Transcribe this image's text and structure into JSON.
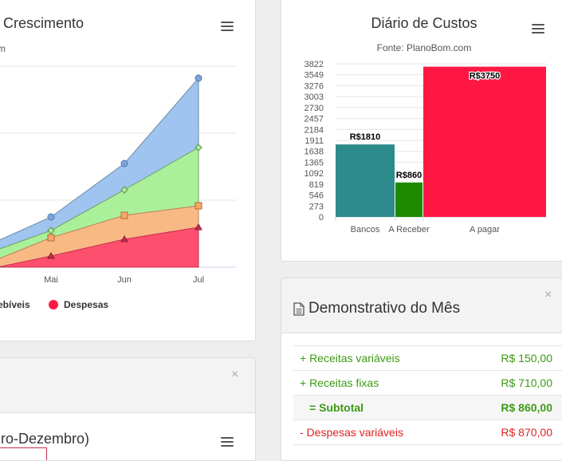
{
  "left_chart": {
    "title": "Crescimento",
    "subtitle_fragment": "m",
    "x_labels": [
      "Mai",
      "Jun",
      "Jul"
    ],
    "legend": [
      {
        "label": "ebíveis",
        "color": ""
      },
      {
        "label": "Despesas",
        "color": "#ff1744"
      }
    ],
    "series_colors": [
      "#9ec4ef",
      "#aaf09a",
      "#f9b985",
      "#ff4f6e"
    ]
  },
  "costs_chart": {
    "title": "Diário de Custos",
    "subtitle": "Fonte: PlanoBom.com",
    "y_ticks": [
      "0",
      "273",
      "546",
      "819",
      "1092",
      "1365",
      "1638",
      "1911",
      "2184",
      "2457",
      "2730",
      "3003",
      "3276",
      "3549",
      "3822"
    ],
    "chart_data": {
      "type": "bar",
      "title": "Diário de Custos",
      "subtitle": "Fonte: PlanoBom.com",
      "categories": [
        "Bancos",
        "A Receber",
        "A pagar"
      ],
      "values": [
        1810,
        860,
        3750
      ],
      "data_labels": [
        "R$1810",
        "R$860",
        "R$3750"
      ],
      "colors": [
        "#2e8b8b",
        "#1d8a00",
        "#ff1744"
      ],
      "ylim": [
        0,
        3822
      ],
      "legend": "none"
    }
  },
  "demo_panel": {
    "title": "Demonstrativo do Mês",
    "close": "×",
    "rows": [
      {
        "label": "+ Receitas variáveis",
        "value": "R$ 150,00"
      },
      {
        "label": "+ Receitas fixas",
        "value": "R$ 710,00"
      },
      {
        "label": "= Subtotal",
        "value": "R$ 860,00"
      },
      {
        "label": "- Despesas variáveis",
        "value": "R$ 870,00"
      }
    ]
  },
  "bottom_left_panel": {
    "close": "×",
    "chart_title_fragment": "ro-Dezembro)"
  }
}
